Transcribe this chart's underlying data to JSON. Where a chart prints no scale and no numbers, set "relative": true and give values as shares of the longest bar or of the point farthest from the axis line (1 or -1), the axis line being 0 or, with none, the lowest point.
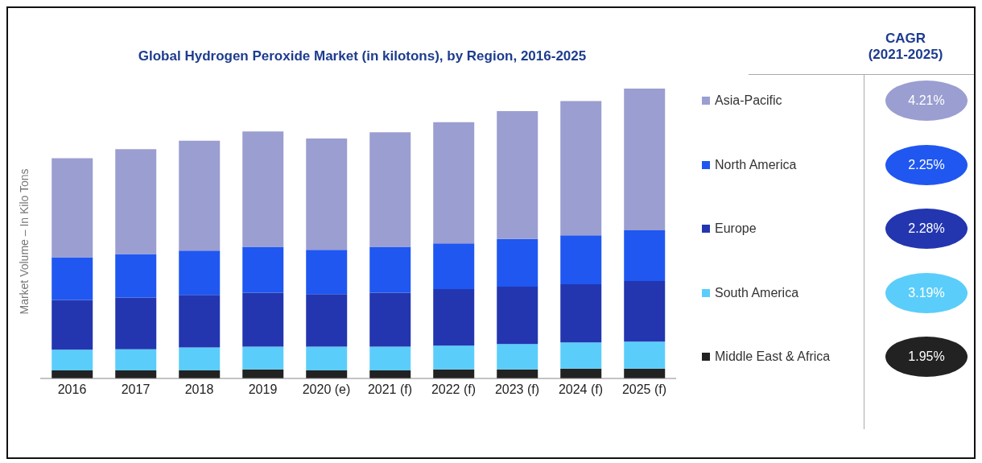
{
  "chart_data": {
    "type": "bar",
    "title": "Global Hydrogen Peroxide Market (in kilotons), by Region, 2016-2025",
    "ylabel": "Market Volume – In Kilo Tons",
    "categories": [
      "2016",
      "2017",
      "2018",
      "2019",
      "2020 (e)",
      "2021 (f)",
      "2022 (f)",
      "2023 (f)",
      "2024 (f)",
      "2025 (f)"
    ],
    "stacked": true,
    "relative": true,
    "legend": "right",
    "series": [
      {
        "name": "Middle East & Africa",
        "color": "#222222",
        "values": [
          0.028,
          0.028,
          0.028,
          0.031,
          0.028,
          0.028,
          0.031,
          0.031,
          0.034,
          0.034
        ]
      },
      {
        "name": "South America",
        "color": "#5bcdfa",
        "values": [
          0.071,
          0.073,
          0.079,
          0.079,
          0.082,
          0.082,
          0.082,
          0.088,
          0.09,
          0.093
        ]
      },
      {
        "name": "Europe",
        "color": "#2336b0",
        "values": [
          0.172,
          0.178,
          0.181,
          0.186,
          0.181,
          0.186,
          0.195,
          0.198,
          0.201,
          0.209
        ]
      },
      {
        "name": "North America",
        "color": "#1f57f0",
        "values": [
          0.147,
          0.15,
          0.153,
          0.158,
          0.153,
          0.158,
          0.158,
          0.164,
          0.169,
          0.175
        ]
      },
      {
        "name": "Asia-Pacific",
        "color": "#9b9ed0",
        "values": [
          0.342,
          0.362,
          0.379,
          0.398,
          0.384,
          0.395,
          0.418,
          0.441,
          0.463,
          0.489
        ]
      }
    ],
    "annotations": [
      "CAGR\n(2021-2025)",
      "1.95%",
      "3.19%",
      "2.28%",
      "2.25%",
      "4.21%"
    ]
  }
}
